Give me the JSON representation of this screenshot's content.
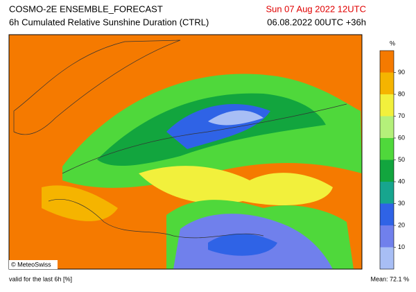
{
  "header": {
    "title": "COSMO-2E ENSEMBLE_FORECAST",
    "subtitle": "6h Cumulated Relative Sunshine Duration (CTRL)",
    "valid_date": "Sun 07 Aug 2022 12UTC",
    "run": "06.08.2022 00UTC +36h"
  },
  "map": {
    "credit": "© MeteoSwiss"
  },
  "colorbar": {
    "unit": "%",
    "ticks": [
      10,
      20,
      30,
      40,
      50,
      60,
      70,
      80,
      90
    ],
    "colors": [
      "#a8bef5",
      "#7080ec",
      "#2f63e6",
      "#17a58e",
      "#12a53e",
      "#4fd83b",
      "#b4f07a",
      "#f2f03c",
      "#f5b400",
      "#f57a00"
    ]
  },
  "footer": {
    "note": "valid for the last 6h [%]",
    "mean": "Mean:  72.1 %"
  }
}
